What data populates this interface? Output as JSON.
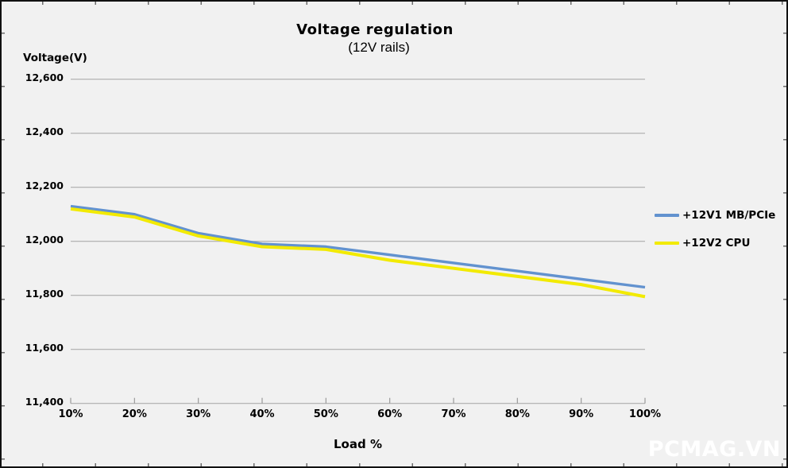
{
  "watermark": {
    "text": "PCMAG.VN"
  },
  "colors": {
    "background": "#f1f1f1",
    "gridline": "#a3a3a3",
    "axis": "#9a9a9a",
    "border": "#111111",
    "text": "#000000",
    "watermark": "#ffffff",
    "series_blue": "#6292cf",
    "series_yellow": "#f2ea00"
  },
  "chart_data": {
    "type": "line",
    "title": "Voltage regulation",
    "subtitle": "(12V rails)",
    "ylabel": "Voltage(V)",
    "xlabel": "Load %",
    "categories": [
      "10%",
      "20%",
      "30%",
      "40%",
      "50%",
      "60%",
      "70%",
      "80%",
      "90%",
      "100%"
    ],
    "series": [
      {
        "name": "+12V1 MB/PCIe",
        "color": "#6292cf",
        "values": [
          12130,
          12100,
          12030,
          11990,
          11980,
          11950,
          11920,
          11890,
          11860,
          11830
        ]
      },
      {
        "name": "+12V2 CPU",
        "color": "#f2ea00",
        "values": [
          12120,
          12090,
          12020,
          11980,
          11970,
          11930,
          11900,
          11870,
          11840,
          11795
        ]
      }
    ],
    "y_tick_labels": [
      "12,600",
      "12,400",
      "12,200",
      "12,000",
      "11,800",
      "11,600",
      "11,400"
    ],
    "y_tick_values": [
      12600,
      12400,
      12200,
      12000,
      11800,
      11600,
      11400
    ],
    "ylim": [
      11400,
      12600
    ],
    "y_step": 200,
    "grid": "horizontal",
    "legend_position": "right"
  }
}
